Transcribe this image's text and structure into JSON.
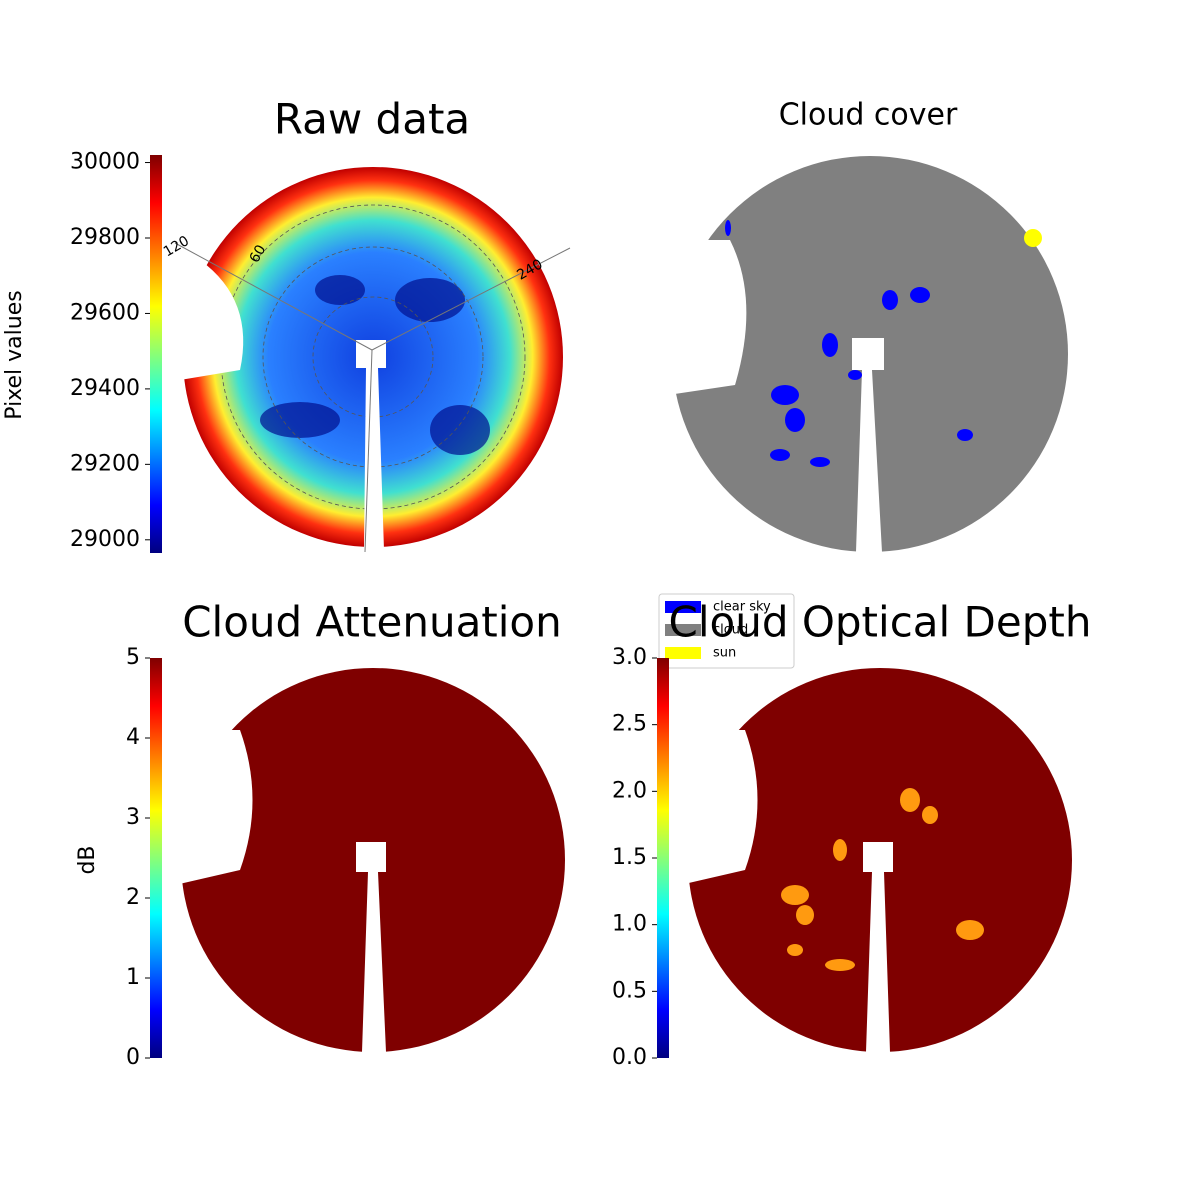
{
  "chart_data": [
    {
      "type": "image",
      "title": "Raw data",
      "colormap": "jet",
      "colorbar_label": "Pixel values",
      "ylim": [
        28965,
        30020
      ],
      "yticks": [
        29000,
        29200,
        29400,
        29600,
        29800,
        30000
      ],
      "annotations": [
        "120",
        "60",
        "240"
      ]
    },
    {
      "type": "image",
      "title": "Cloud cover",
      "legend": [
        {
          "name": "clear sky",
          "color": "#0000ff"
        },
        {
          "name": "cloud",
          "color": "#808080"
        },
        {
          "name": "sun",
          "color": "#ffff00"
        }
      ]
    },
    {
      "type": "image",
      "title": "Cloud Attenuation",
      "colormap": "jet",
      "colorbar_label": "dB",
      "ylim": [
        0,
        5
      ],
      "yticks": [
        0,
        1,
        2,
        3,
        4,
        5
      ]
    },
    {
      "type": "image",
      "title": "Cloud Optical Depth",
      "colormap": "jet",
      "ylim": [
        0,
        3
      ],
      "yticks": [
        {
          "value": 0,
          "label": "0.0"
        },
        {
          "value": 0.5,
          "label": "0.5"
        },
        {
          "value": 1,
          "label": "1.0"
        },
        {
          "value": 1.5,
          "label": "1.5"
        },
        {
          "value": 2,
          "label": "2.0"
        },
        {
          "value": 2.5,
          "label": "2.5"
        },
        {
          "value": 3,
          "label": "3.0"
        }
      ]
    }
  ]
}
